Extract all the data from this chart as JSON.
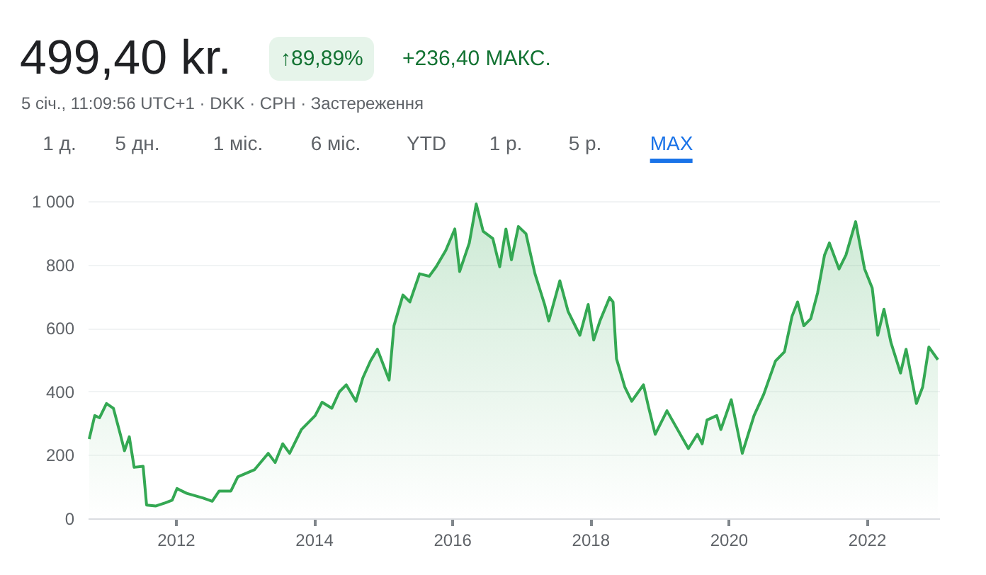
{
  "chart_data": {
    "type": "area",
    "title": "499,40 kr.",
    "subtitle": "5 січ., 11:09:56 UTC+1 · DKK · CPH · Застереження",
    "annotations": [
      "↑89,89%",
      "+236,40 МАКС.",
      "1 д.",
      "5 дн.",
      "1 міс.",
      "6 міс.",
      "YTD",
      "1 р.",
      "5 р.",
      "MAX"
    ],
    "x": [
      2010.75,
      2010.83,
      2010.9,
      2011.0,
      2011.1,
      2011.2,
      2011.26,
      2011.33,
      2011.4,
      2011.53,
      2011.58,
      2011.71,
      2011.85,
      2011.95,
      2012.02,
      2012.16,
      2012.4,
      2012.53,
      2012.63,
      2012.8,
      2012.9,
      2013.14,
      2013.34,
      2013.44,
      2013.55,
      2013.65,
      2013.82,
      2014.02,
      2014.12,
      2014.26,
      2014.37,
      2014.47,
      2014.61,
      2014.71,
      2014.82,
      2014.92,
      2015.09,
      2015.16,
      2015.29,
      2015.39,
      2015.53,
      2015.67,
      2015.77,
      2015.91,
      2016.04,
      2016.11,
      2016.25,
      2016.35,
      2016.45,
      2016.59,
      2016.69,
      2016.78,
      2016.86,
      2016.96,
      2017.07,
      2017.2,
      2017.34,
      2017.4,
      2017.56,
      2017.68,
      2017.85,
      2017.97,
      2018.05,
      2018.14,
      2018.28,
      2018.33,
      2018.38,
      2018.5,
      2018.6,
      2018.77,
      2018.84,
      2018.94,
      2019.11,
      2019.42,
      2019.55,
      2019.62,
      2019.69,
      2019.83,
      2019.89,
      2020.04,
      2020.2,
      2020.37,
      2020.51,
      2020.68,
      2020.81,
      2020.92,
      2021.0,
      2021.09,
      2021.19,
      2021.29,
      2021.39,
      2021.46,
      2021.6,
      2021.7,
      2021.84,
      2021.97,
      2022.08,
      2022.16,
      2022.25,
      2022.35,
      2022.49,
      2022.57,
      2022.72,
      2022.81,
      2022.9,
      2023.03
    ],
    "series": [
      {
        "color": "#34a853",
        "values": [
          250,
          324,
          317,
          362,
          347,
          265,
          213,
          257,
          161,
          164,
          42,
          39,
          49,
          57,
          94,
          79,
          64,
          54,
          86,
          86,
          131,
          153,
          205,
          176,
          235,
          205,
          280,
          324,
          366,
          347,
          399,
          421,
          369,
          443,
          496,
          533,
          436,
          607,
          704,
          682,
          771,
          763,
          793,
          845,
          912,
          778,
          868,
          991,
          905,
          882,
          793,
          912,
          815,
          920,
          897,
          771,
          674,
          622,
          749,
          652,
          577,
          674,
          562,
          622,
          696,
          682,
          503,
          414,
          369,
          421,
          354,
          265,
          339,
          220,
          265,
          235,
          310,
          324,
          280,
          374,
          205,
          324,
          391,
          496,
          525,
          637,
          682,
          607,
          629,
          711,
          830,
          868,
          786,
          830,
          935,
          786,
          726,
          577,
          659,
          555,
          458,
          533,
          362,
          414,
          540,
          500
        ]
      }
    ],
    "xlim": [
      2010.73,
      2023.05
    ],
    "xticks": [
      2012,
      2014,
      2016,
      2018,
      2020,
      2022
    ],
    "ylim": [
      0,
      1000
    ],
    "yticks": [
      0,
      200,
      400,
      600,
      800,
      {
        "value": 1000,
        "label": "1 000"
      }
    ],
    "grid": "y"
  }
}
